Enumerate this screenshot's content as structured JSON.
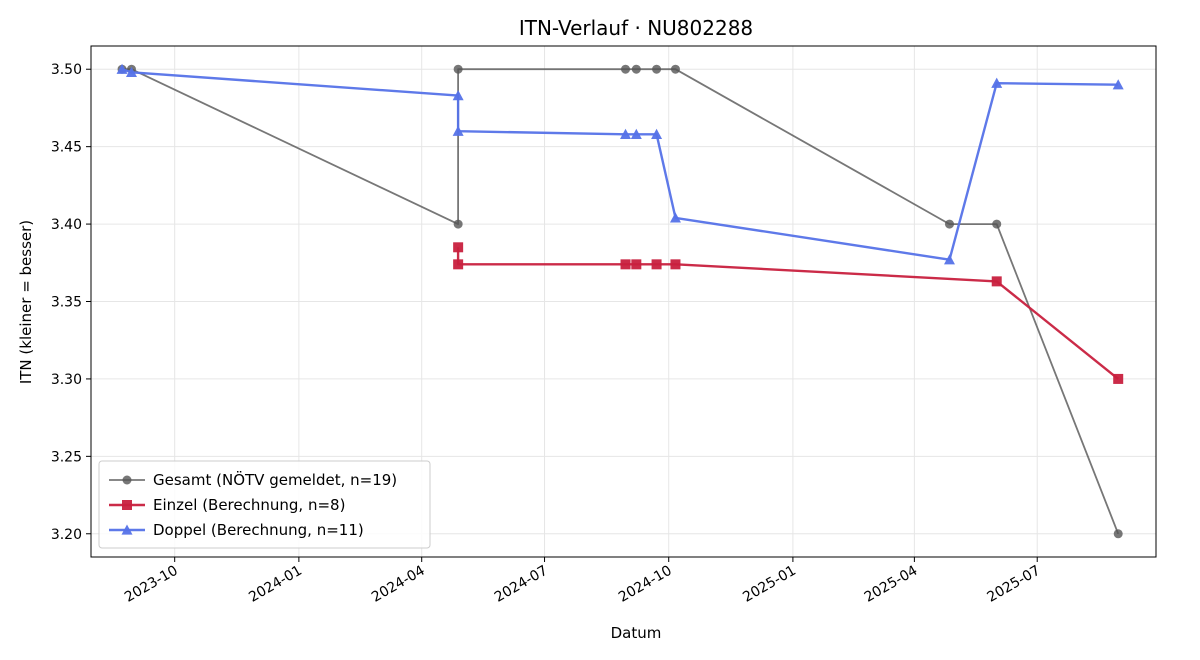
{
  "chart_data": {
    "type": "line",
    "title": "ITN-Verlauf · NU802288",
    "xlabel": "Datum",
    "ylabel": "ITN  (kleiner = besser)",
    "x_type": "date",
    "xlim": [
      "2023-07-31",
      "2025-09-27"
    ],
    "ylim": [
      3.185,
      3.515
    ],
    "x_ticks": [
      "2023-10",
      "2024-01",
      "2024-04",
      "2024-07",
      "2024-10",
      "2025-01",
      "2025-04",
      "2025-07"
    ],
    "y_ticks": [
      "3.20",
      "3.25",
      "3.30",
      "3.35",
      "3.40",
      "3.45",
      "3.50"
    ],
    "grid": true,
    "legend_position": "lower-left",
    "series": [
      {
        "name": "Gesamt (NÖTV gemeldet, n=19)",
        "color": "#555555",
        "marker": "circle",
        "points": [
          [
            "2023-08-23",
            3.5
          ],
          [
            "2023-08-30",
            3.5
          ],
          [
            "2024-04-28",
            3.4
          ],
          [
            "2024-04-28",
            3.5
          ],
          [
            "2024-08-30",
            3.5
          ],
          [
            "2024-09-07",
            3.5
          ],
          [
            "2024-09-22",
            3.5
          ],
          [
            "2024-10-06",
            3.5
          ],
          [
            "2025-04-27",
            3.4
          ],
          [
            "2025-06-01",
            3.4
          ],
          [
            "2025-08-30",
            3.2
          ]
        ]
      },
      {
        "name": "Einzel (Berechnung, n=8)",
        "color": "#c8203e",
        "marker": "square",
        "points": [
          [
            "2024-04-28",
            3.385
          ],
          [
            "2024-04-28",
            3.374
          ],
          [
            "2024-08-30",
            3.374
          ],
          [
            "2024-09-07",
            3.374
          ],
          [
            "2024-09-22",
            3.374
          ],
          [
            "2024-10-06",
            3.374
          ],
          [
            "2025-06-01",
            3.363
          ],
          [
            "2025-08-30",
            3.3
          ]
        ]
      },
      {
        "name": "Doppel (Berechnung, n=11)",
        "color": "#5572e8",
        "marker": "triangle",
        "points": [
          [
            "2023-08-23",
            3.5
          ],
          [
            "2023-08-30",
            3.498
          ],
          [
            "2024-04-28",
            3.483
          ],
          [
            "2024-04-28",
            3.46
          ],
          [
            "2024-08-30",
            3.458
          ],
          [
            "2024-09-07",
            3.458
          ],
          [
            "2024-09-22",
            3.458
          ],
          [
            "2024-10-06",
            3.404
          ],
          [
            "2025-04-27",
            3.377
          ],
          [
            "2025-06-01",
            3.491
          ],
          [
            "2025-08-30",
            3.49
          ]
        ]
      }
    ]
  }
}
